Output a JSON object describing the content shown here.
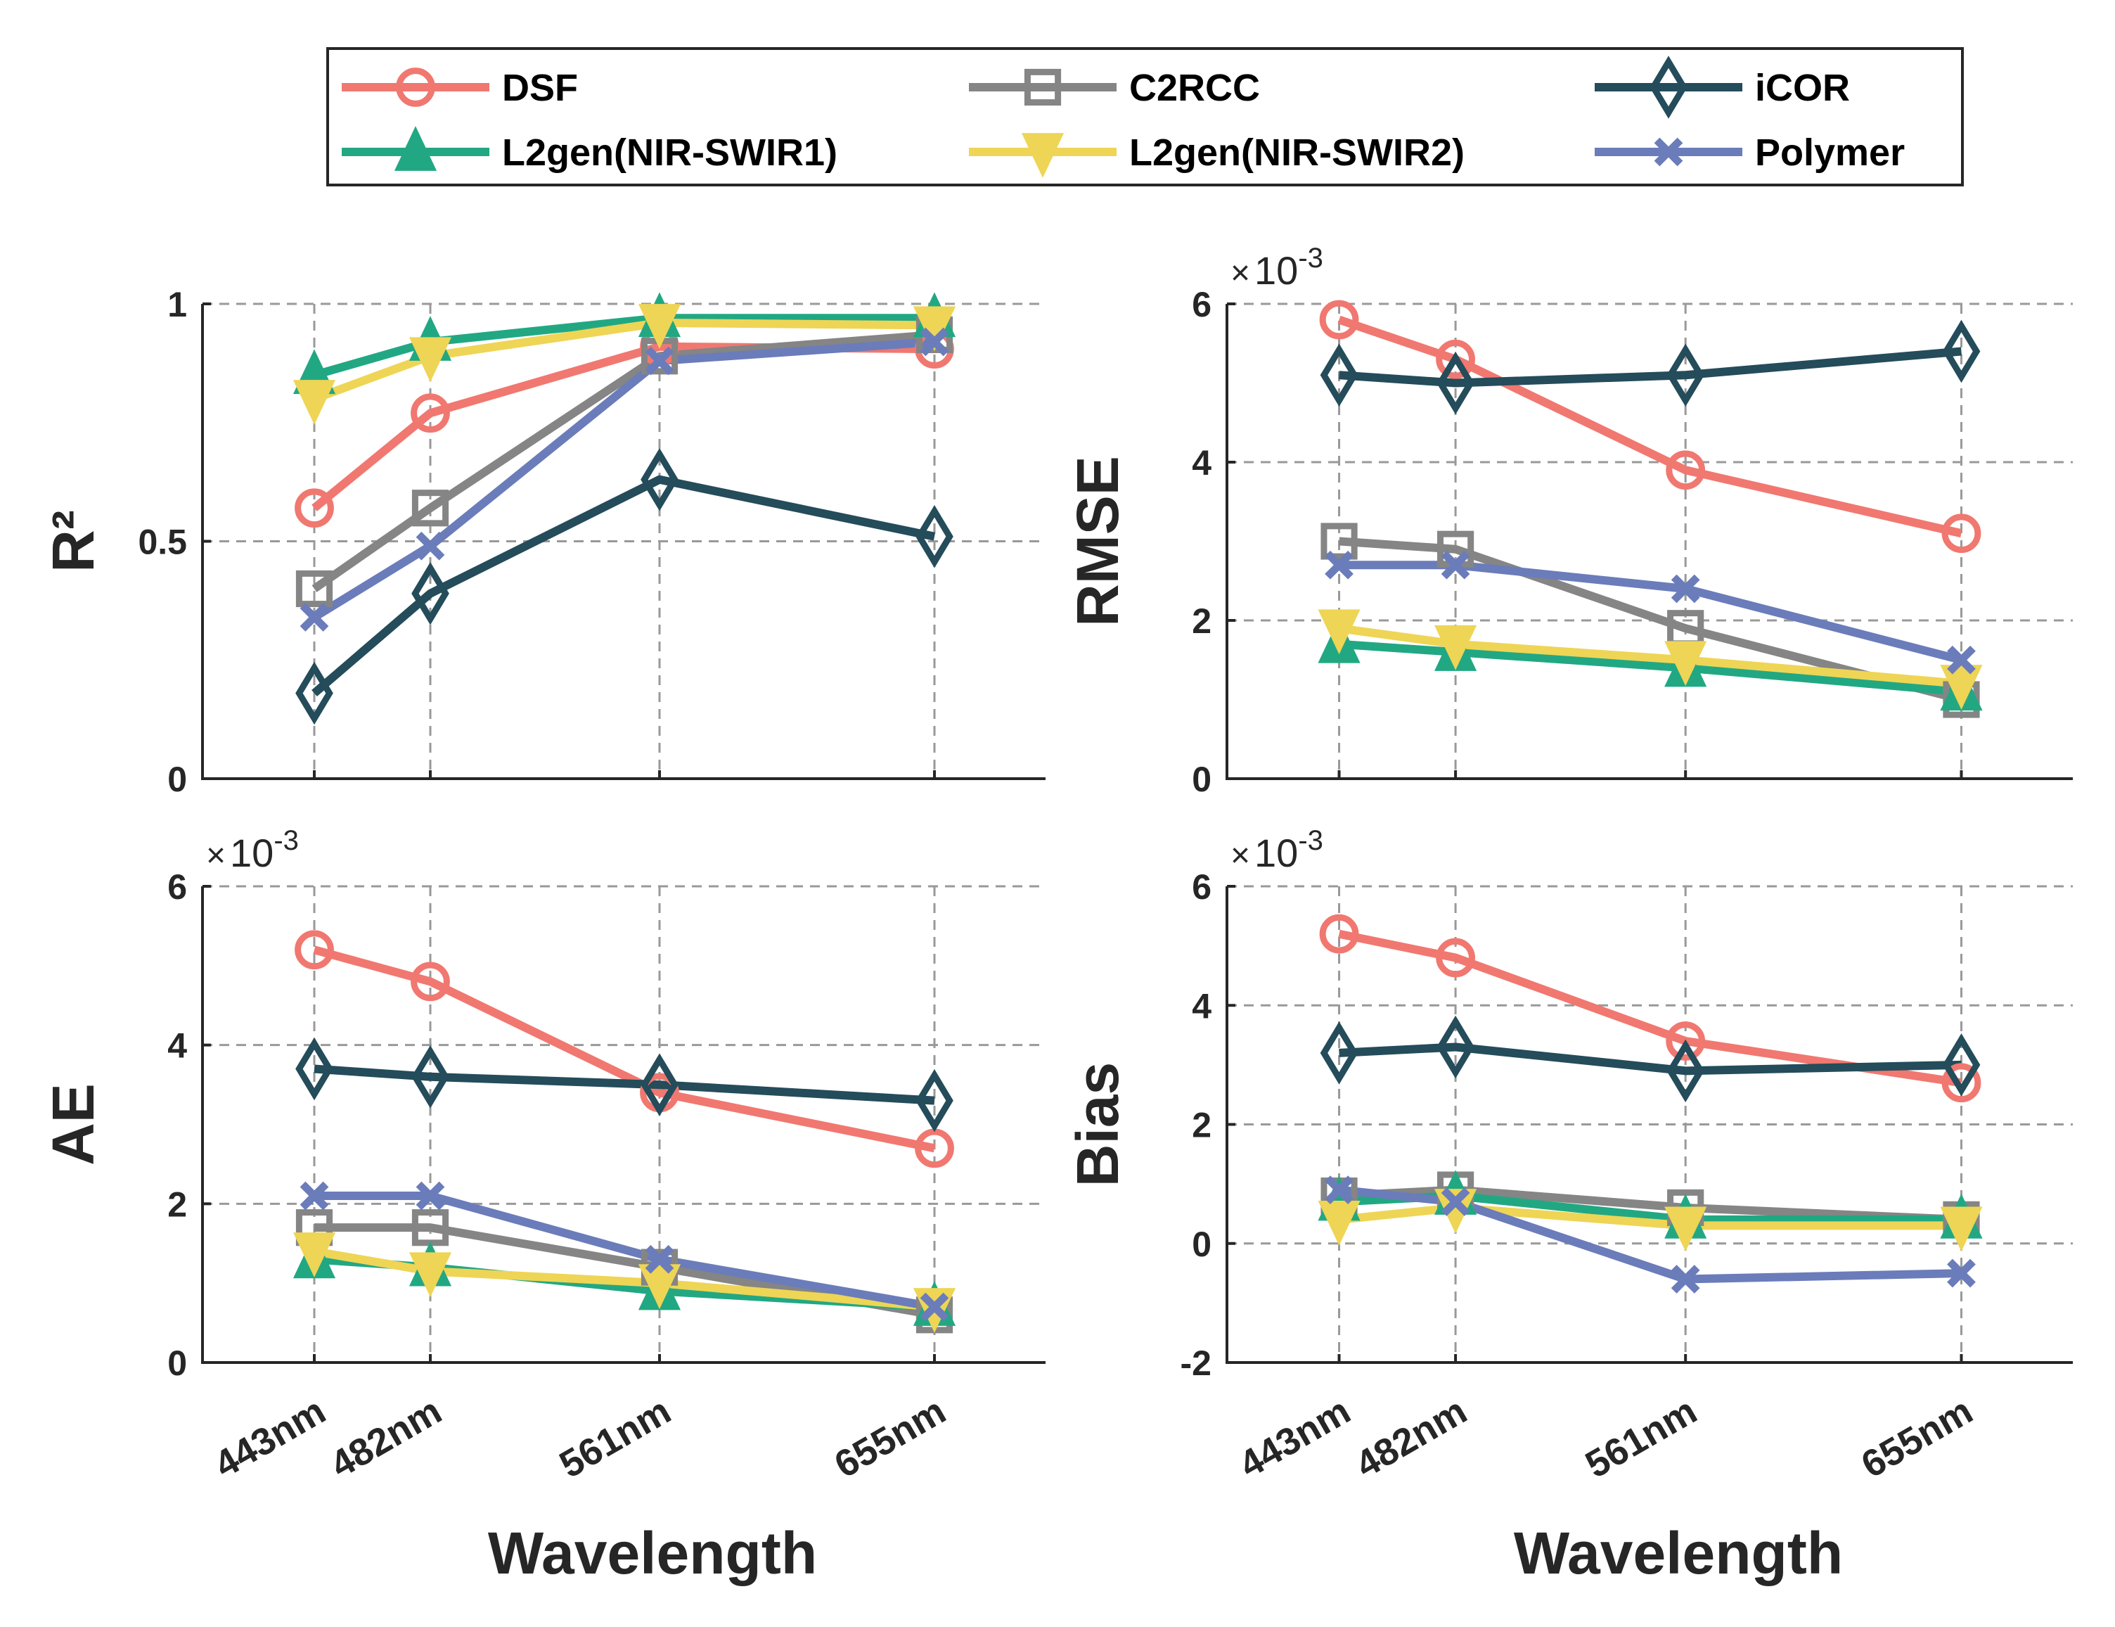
{
  "chart_data": {
    "type": "line",
    "layout": "2x2 subplots with shared legend on top",
    "legend": {
      "placement": "top-center",
      "columns": 3,
      "entries": [
        {
          "name": "DSF",
          "color": "#F07870",
          "marker": "circle"
        },
        {
          "name": "C2RCC",
          "color": "#858585",
          "marker": "square"
        },
        {
          "name": "iCOR",
          "color": "#244C5A",
          "marker": "diamond"
        },
        {
          "name": "L2gen(NIR-SWIR1)",
          "color": "#21A883",
          "marker": "triangle-up"
        },
        {
          "name": "L2gen(NIR-SWIR2)",
          "color": "#EED555",
          "marker": "triangle-down"
        },
        {
          "name": "Polymer",
          "color": "#6B7CBA",
          "marker": "x"
        }
      ]
    },
    "categories": [
      "443nm",
      "482nm",
      "561nm",
      "655nm"
    ],
    "panels": [
      {
        "id": "r2",
        "position": "top-left",
        "ylabel": "R²",
        "xlabel": "",
        "ylim": [
          0,
          1
        ],
        "yticks": [
          0,
          0.5,
          1
        ],
        "ytick_labels": [
          "0",
          "0.5",
          "1"
        ],
        "exponent_label": "",
        "grid": true,
        "series": [
          {
            "name": "DSF",
            "values": [
              0.57,
              0.77,
              0.91,
              0.905
            ]
          },
          {
            "name": "C2RCC",
            "values": [
              0.4,
              0.57,
              0.89,
              0.935
            ]
          },
          {
            "name": "iCOR",
            "values": [
              0.18,
              0.39,
              0.63,
              0.51
            ]
          },
          {
            "name": "L2gen(NIR-SWIR1)",
            "values": [
              0.85,
              0.92,
              0.97,
              0.97
            ]
          },
          {
            "name": "L2gen(NIR-SWIR2)",
            "values": [
              0.8,
              0.89,
              0.96,
              0.955
            ]
          },
          {
            "name": "Polymer",
            "values": [
              0.34,
              0.49,
              0.88,
              0.92
            ]
          }
        ]
      },
      {
        "id": "rmse",
        "position": "top-right",
        "ylabel": "RMSE",
        "xlabel": "",
        "ylim": [
          0,
          6
        ],
        "yticks": [
          0,
          2,
          4,
          6
        ],
        "ytick_labels": [
          "0",
          "2",
          "4",
          "6"
        ],
        "exponent_label": "×10-3",
        "unit_scale": 0.001,
        "grid": true,
        "series": [
          {
            "name": "DSF",
            "values": [
              5.8,
              5.3,
              3.9,
              3.1
            ]
          },
          {
            "name": "C2RCC",
            "values": [
              3.0,
              2.9,
              1.9,
              1.0
            ]
          },
          {
            "name": "iCOR",
            "values": [
              5.1,
              5.0,
              5.1,
              5.4
            ]
          },
          {
            "name": "L2gen(NIR-SWIR1)",
            "values": [
              1.7,
              1.6,
              1.4,
              1.1
            ]
          },
          {
            "name": "L2gen(NIR-SWIR2)",
            "values": [
              1.9,
              1.7,
              1.5,
              1.2
            ]
          },
          {
            "name": "Polymer",
            "values": [
              2.7,
              2.7,
              2.4,
              1.5
            ]
          }
        ]
      },
      {
        "id": "ae",
        "position": "bottom-left",
        "ylabel": "AE",
        "xlabel": "Wavelength",
        "ylim": [
          0,
          6
        ],
        "yticks": [
          0,
          2,
          4,
          6
        ],
        "ytick_labels": [
          "0",
          "2",
          "4",
          "6"
        ],
        "exponent_label": "×10-3",
        "unit_scale": 0.001,
        "grid": true,
        "series": [
          {
            "name": "DSF",
            "values": [
              5.2,
              4.8,
              3.4,
              2.7
            ]
          },
          {
            "name": "C2RCC",
            "values": [
              1.7,
              1.7,
              1.2,
              0.6
            ]
          },
          {
            "name": "iCOR",
            "values": [
              3.7,
              3.6,
              3.5,
              3.3
            ]
          },
          {
            "name": "L2gen(NIR-SWIR1)",
            "values": [
              1.3,
              1.2,
              0.9,
              0.7
            ]
          },
          {
            "name": "L2gen(NIR-SWIR2)",
            "values": [
              1.4,
              1.15,
              1.0,
              0.7
            ]
          },
          {
            "name": "Polymer",
            "values": [
              2.1,
              2.1,
              1.3,
              0.7
            ]
          }
        ]
      },
      {
        "id": "bias",
        "position": "bottom-right",
        "ylabel": "Bias",
        "xlabel": "Wavelength",
        "ylim": [
          -2,
          6
        ],
        "yticks": [
          -2,
          0,
          2,
          4,
          6
        ],
        "ytick_labels": [
          "-2",
          "0",
          "2",
          "4",
          "6"
        ],
        "exponent_label": "×10-3",
        "unit_scale": 0.001,
        "grid": true,
        "series": [
          {
            "name": "DSF",
            "values": [
              5.2,
              4.8,
              3.4,
              2.7
            ]
          },
          {
            "name": "C2RCC",
            "values": [
              0.8,
              0.9,
              0.6,
              0.4
            ]
          },
          {
            "name": "iCOR",
            "values": [
              3.2,
              3.3,
              2.9,
              3.0
            ]
          },
          {
            "name": "L2gen(NIR-SWIR1)",
            "values": [
              0.7,
              0.8,
              0.4,
              0.4
            ]
          },
          {
            "name": "L2gen(NIR-SWIR2)",
            "values": [
              0.4,
              0.6,
              0.3,
              0.3
            ]
          },
          {
            "name": "Polymer",
            "values": [
              0.9,
              0.7,
              -0.6,
              -0.5
            ]
          }
        ]
      }
    ]
  }
}
